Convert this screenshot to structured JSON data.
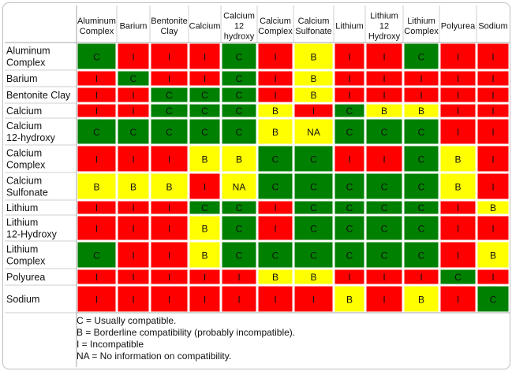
{
  "chart_data": {
    "type": "table",
    "title": "",
    "columns": [
      [
        "Aluminum",
        "Complex"
      ],
      [
        "Barium"
      ],
      [
        "Bentonite",
        "Clay"
      ],
      [
        "Calcium"
      ],
      [
        "Calcium",
        "12",
        "hydroxy"
      ],
      [
        "Calcium",
        "Complex"
      ],
      [
        "Calcium",
        "Sulfonate"
      ],
      [
        "Lithium"
      ],
      [
        "Lithium",
        "12",
        "Hydroxy"
      ],
      [
        "Lithium",
        "Complex"
      ],
      [
        "Polyurea"
      ],
      [
        "Sodium"
      ]
    ],
    "rows": [
      {
        "label": [
          "Aluminum",
          "Complex"
        ],
        "cells": [
          "C",
          "I",
          "I",
          "I",
          "C",
          "I",
          "B",
          "I",
          "I",
          "C",
          "I",
          "I"
        ]
      },
      {
        "label": [
          "Barium"
        ],
        "cells": [
          "I",
          "C",
          "I",
          "I",
          "C",
          "I",
          "B",
          "I",
          "I",
          "I",
          "I",
          "I"
        ]
      },
      {
        "label": [
          "Bentonite Clay"
        ],
        "cells": [
          "I",
          "I",
          "C",
          "C",
          "C",
          "I",
          "B",
          "I",
          "I",
          "I",
          "I",
          "I"
        ]
      },
      {
        "label": [
          "Calcium"
        ],
        "cells": [
          "I",
          "I",
          "C",
          "C",
          "C",
          "B",
          "I",
          "C",
          "B",
          "B",
          "I",
          "I"
        ]
      },
      {
        "label": [
          "Calcium",
          "12-hydroxy"
        ],
        "cells": [
          "C",
          "C",
          "C",
          "C",
          "C",
          "B",
          "NA",
          "C",
          "C",
          "C",
          "I",
          "I"
        ]
      },
      {
        "label": [
          "Calcium",
          "Complex"
        ],
        "cells": [
          "I",
          "I",
          "I",
          "B",
          "B",
          "C",
          "C",
          "I",
          "I",
          "C",
          "B",
          "I"
        ]
      },
      {
        "label": [
          "Calcium",
          "Sulfonate"
        ],
        "cells": [
          "B",
          "B",
          "B",
          "I",
          "NA",
          "C",
          "C",
          "C",
          "C",
          "C",
          "B",
          "I"
        ]
      },
      {
        "label": [
          "Lithium"
        ],
        "cells": [
          "I",
          "I",
          "I",
          "C",
          "C",
          "I",
          "C",
          "C",
          "C",
          "C",
          "I",
          "B"
        ]
      },
      {
        "label": [
          "Lithium",
          "12-Hydroxy"
        ],
        "cells": [
          "I",
          "I",
          "I",
          "B",
          "C",
          "I",
          "C",
          "C",
          "C",
          "C",
          "I",
          "I"
        ]
      },
      {
        "label": [
          "Lithium",
          "Complex"
        ],
        "cells": [
          "C",
          "I",
          "I",
          "B",
          "C",
          "C",
          "C",
          "C",
          "C",
          "C",
          "I",
          "B"
        ]
      },
      {
        "label": [
          "Polyurea"
        ],
        "cells": [
          "I",
          "I",
          "I",
          "I",
          "I",
          "B",
          "B",
          "I",
          "I",
          "I",
          "C",
          "I"
        ]
      },
      {
        "label": [
          "Sodium"
        ],
        "cells": [
          "I",
          "I",
          "I",
          "I",
          "I",
          "I",
          "I",
          "B",
          "I",
          "B",
          "I",
          "C"
        ]
      }
    ],
    "colors": {
      "C": "#008000",
      "B": "#ffff00",
      "I": "#ff0000",
      "NA": "#ffff00"
    },
    "legend": [
      "C = Usually compatible.",
      "B = Borderline compatibility (probably incompatible).",
      "I = Incompatible",
      "NA = No information on compatibility."
    ]
  }
}
